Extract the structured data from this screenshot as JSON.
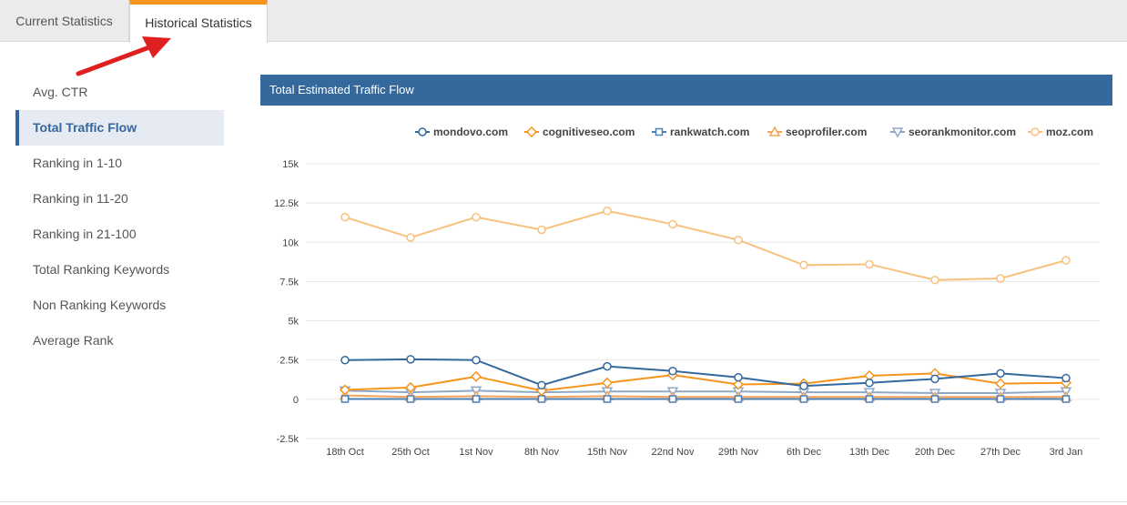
{
  "tabs": [
    {
      "label": "Current Statistics"
    },
    {
      "label": "Historical Statistics"
    }
  ],
  "sidebar": {
    "items": [
      {
        "label": "Avg. CTR"
      },
      {
        "label": "Total Traffic Flow"
      },
      {
        "label": "Ranking in 1-10"
      },
      {
        "label": "Ranking in 11-20"
      },
      {
        "label": "Ranking in 21-100"
      },
      {
        "label": "Total Ranking Keywords"
      },
      {
        "label": "Non Ranking Keywords"
      },
      {
        "label": "Average Rank"
      }
    ]
  },
  "panel": {
    "title": "Total Estimated Traffic Flow"
  },
  "colors": {
    "accent": "#f7941d",
    "header": "#35699e",
    "arrow": "#e02020"
  },
  "chart_data": {
    "type": "line",
    "title": "Total Estimated Traffic Flow",
    "xlabel": "",
    "ylabel": "",
    "ylim": [
      -2500,
      15000
    ],
    "yticks": [
      -2500,
      0,
      2500,
      5000,
      7500,
      10000,
      12500,
      15000
    ],
    "ytick_labels": [
      "-2.5k",
      "0",
      "2.5k",
      "5k",
      "7.5k",
      "10k",
      "12.5k",
      "15k"
    ],
    "categories": [
      "18th Oct",
      "25th Oct",
      "1st Nov",
      "8th Nov",
      "15th Nov",
      "22nd Nov",
      "29th Nov",
      "6th Dec",
      "13th Dec",
      "20th Dec",
      "27th Dec",
      "3rd Jan"
    ],
    "series": [
      {
        "name": "mondovo.com",
        "color": "#35699e",
        "marker": "circle",
        "values": [
          2500,
          2550,
          2500,
          900,
          2100,
          1800,
          1400,
          850,
          1050,
          1300,
          1650,
          1350
        ]
      },
      {
        "name": "cognitiveseo.com",
        "color": "#f7941d",
        "marker": "diamond",
        "values": [
          600,
          750,
          1450,
          550,
          1050,
          1550,
          950,
          1000,
          1500,
          1650,
          1000,
          1050
        ]
      },
      {
        "name": "rankwatch.com",
        "color": "#4d7fb3",
        "marker": "square",
        "values": [
          20,
          20,
          20,
          20,
          20,
          20,
          20,
          20,
          20,
          20,
          20,
          20
        ]
      },
      {
        "name": "seoprofiler.com",
        "color": "#f5a25a",
        "marker": "triangle",
        "values": [
          250,
          150,
          200,
          150,
          200,
          150,
          150,
          150,
          150,
          150,
          150,
          150
        ]
      },
      {
        "name": "seorankmonitor.com",
        "color": "#8ea9c8",
        "marker": "triangle-down",
        "values": [
          550,
          450,
          550,
          450,
          500,
          500,
          500,
          450,
          450,
          400,
          400,
          500
        ]
      },
      {
        "name": "moz.com",
        "color": "#f7c27e",
        "marker": "circle",
        "values": [
          11600,
          10300,
          11600,
          10800,
          12000,
          11150,
          10150,
          8550,
          8600,
          7600,
          7700,
          8850
        ]
      }
    ]
  }
}
